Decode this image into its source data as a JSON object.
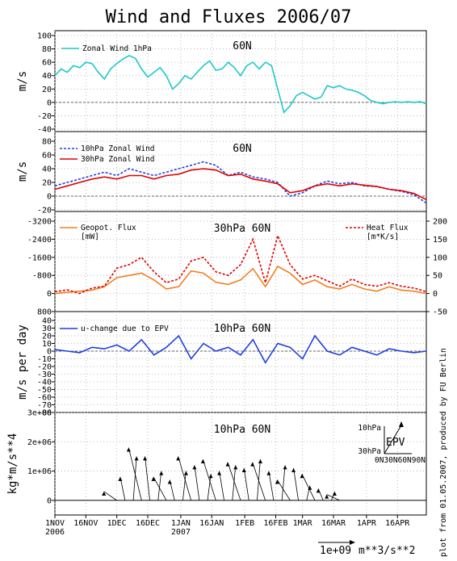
{
  "title": "Wind and Fluxes 2006/07",
  "side_note": "plot from 01.05.2007, produced by FU Berlin",
  "x_ticks": [
    "1NOV",
    "16NOV",
    "1DEC",
    "16DEC",
    "1JAN",
    "16JAN",
    "1FEB",
    "16FEB",
    "1MAR",
    "16MAR",
    "1APR",
    "16APR"
  ],
  "x_year_labels": [
    {
      "under": "1NOV",
      "text": "2006"
    },
    {
      "under": "1JAN",
      "text": "2007"
    }
  ],
  "colors": {
    "cyan": "#1ec8c8",
    "blue": "#2040e0",
    "red": "#e00000",
    "orange": "#f08020",
    "black": "#000000",
    "grid": "#aaaaaa"
  },
  "panels": {
    "p1": {
      "title": "60N",
      "ylabel": "m/s",
      "legend": "Zonal Wind 1hPa",
      "yticks": [
        "100",
        "80",
        "60",
        "40",
        "20",
        "0",
        "-20",
        "-40"
      ]
    },
    "p2": {
      "title": "60N",
      "ylabel": "m/s",
      "legend1": "10hPa Zonal Wind",
      "legend2": "30hPa Zonal Wind",
      "yticks": [
        "80",
        "60",
        "40",
        "20",
        "0",
        "-20"
      ]
    },
    "p3": {
      "title": "30hPa 60N",
      "legend_left": "Geopot. Flux",
      "legend_left_unit": "[mW]",
      "legend_right": "Heat Flux",
      "legend_right_unit": "[m*K/s]",
      "yticks_left": [
        "-3200",
        "-2400",
        "-1600",
        "-800",
        "0",
        "800"
      ],
      "yticks_right": [
        "200",
        "150",
        "100",
        "50",
        "0",
        "-50"
      ]
    },
    "p4": {
      "title": "10hPa 60N",
      "ylabel": "m/s per day",
      "legend": "u-change due to EPV",
      "yticks": [
        "40",
        "30",
        "20",
        "10",
        "0",
        "-10",
        "-20",
        "-30",
        "-40",
        "-50",
        "-60",
        "-70",
        "-80"
      ]
    },
    "p5": {
      "title": "10hPa 60N",
      "ylabel": "kg*m/s**4",
      "yticks": [
        "3e+06",
        "2e+06",
        "1e+06",
        "0"
      ],
      "inset": {
        "label": "EPV",
        "y_top": "10hPa",
        "y_bottom": "30hPa",
        "x_label": "0N30N60N90N"
      },
      "scale_label": "1e+09",
      "scale_unit": "m**3/s**2"
    }
  },
  "chart_data": [
    {
      "type": "line",
      "title": "60N",
      "ylabel": "m/s",
      "ylim": [
        -40,
        100
      ],
      "x_unit": "days since 1NOV2006",
      "series": [
        {
          "name": "Zonal Wind 1hPa",
          "color": "#1ec8c8",
          "x": [
            0,
            3,
            6,
            9,
            12,
            15,
            18,
            21,
            24,
            27,
            30,
            33,
            36,
            39,
            42,
            45,
            48,
            51,
            54,
            57,
            60,
            63,
            66,
            69,
            72,
            75,
            78,
            81,
            84,
            87,
            90,
            93,
            96,
            99,
            102,
            105,
            108,
            111,
            114,
            117,
            120,
            123,
            126,
            129,
            132,
            135,
            138,
            141,
            144,
            147,
            150,
            153,
            156,
            159,
            162,
            165,
            168,
            171,
            174,
            177,
            180
          ],
          "values": [
            40,
            50,
            45,
            55,
            52,
            60,
            58,
            45,
            35,
            50,
            58,
            65,
            70,
            66,
            50,
            38,
            45,
            52,
            40,
            20,
            28,
            40,
            35,
            45,
            55,
            62,
            48,
            50,
            60,
            52,
            40,
            55,
            60,
            50,
            60,
            55,
            20,
            -15,
            -5,
            10,
            15,
            10,
            5,
            8,
            25,
            22,
            25,
            20,
            18,
            15,
            10,
            3,
            0,
            -2,
            0,
            1,
            0,
            1,
            0,
            1,
            -2
          ]
        }
      ]
    },
    {
      "type": "line",
      "title": "60N",
      "ylabel": "m/s",
      "ylim": [
        -20,
        80
      ],
      "series": [
        {
          "name": "10hPa Zonal Wind",
          "color": "#2040e0",
          "x": [
            0,
            6,
            12,
            18,
            24,
            30,
            36,
            42,
            48,
            54,
            60,
            66,
            72,
            78,
            84,
            90,
            96,
            102,
            108,
            114,
            120,
            126,
            132,
            138,
            144,
            150,
            156,
            162,
            168,
            174,
            180
          ],
          "values": [
            15,
            20,
            25,
            30,
            35,
            30,
            40,
            35,
            30,
            35,
            40,
            45,
            50,
            45,
            30,
            35,
            28,
            25,
            20,
            0,
            5,
            15,
            22,
            18,
            20,
            15,
            14,
            10,
            7,
            2,
            -10
          ]
        },
        {
          "name": "30hPa Zonal Wind",
          "color": "#e00000",
          "x": [
            0,
            6,
            12,
            18,
            24,
            30,
            36,
            42,
            48,
            54,
            60,
            66,
            72,
            78,
            84,
            90,
            96,
            102,
            108,
            114,
            120,
            126,
            132,
            138,
            144,
            150,
            156,
            162,
            168,
            174,
            180
          ],
          "values": [
            10,
            15,
            20,
            25,
            28,
            25,
            30,
            30,
            25,
            30,
            32,
            38,
            40,
            38,
            30,
            32,
            25,
            22,
            18,
            5,
            8,
            15,
            18,
            15,
            18,
            16,
            14,
            10,
            8,
            4,
            -5
          ]
        }
      ]
    },
    {
      "type": "line",
      "title": "30hPa 60N",
      "ylim_left": [
        800,
        -3200
      ],
      "ylim_right": [
        -50,
        200
      ],
      "series": [
        {
          "name": "Geopot. Flux",
          "unit": "[mW]",
          "axis": "left",
          "color": "#f08020",
          "x": [
            0,
            6,
            12,
            18,
            24,
            30,
            36,
            42,
            48,
            54,
            60,
            66,
            72,
            78,
            84,
            90,
            96,
            102,
            108,
            114,
            120,
            126,
            132,
            138,
            144,
            150,
            156,
            162,
            168,
            174,
            180
          ],
          "values": [
            0,
            -50,
            -100,
            -150,
            -300,
            -700,
            -800,
            -900,
            -600,
            -200,
            -300,
            -1000,
            -900,
            -500,
            -400,
            -600,
            -1100,
            -300,
            -1200,
            -900,
            -400,
            -600,
            -300,
            -200,
            -400,
            -200,
            -100,
            -300,
            -150,
            -100,
            0
          ]
        },
        {
          "name": "Heat Flux",
          "unit": "[m*K/s]",
          "axis": "right",
          "color": "#e00000",
          "x": [
            0,
            6,
            12,
            18,
            24,
            30,
            36,
            42,
            48,
            54,
            60,
            66,
            72,
            78,
            84,
            90,
            96,
            102,
            108,
            114,
            120,
            126,
            132,
            138,
            144,
            150,
            156,
            162,
            168,
            174,
            180
          ],
          "values": [
            5,
            10,
            0,
            15,
            20,
            70,
            80,
            100,
            60,
            30,
            40,
            90,
            100,
            60,
            50,
            80,
            150,
            30,
            160,
            80,
            40,
            50,
            35,
            20,
            40,
            25,
            20,
            30,
            20,
            15,
            5
          ]
        }
      ]
    },
    {
      "type": "line",
      "title": "10hPa 60N",
      "ylabel": "m/s per day",
      "ylim": [
        -80,
        40
      ],
      "series": [
        {
          "name": "u-change due to EPV",
          "color": "#2040e0",
          "x": [
            0,
            6,
            12,
            18,
            24,
            30,
            36,
            42,
            48,
            54,
            60,
            66,
            72,
            78,
            84,
            90,
            96,
            102,
            108,
            114,
            120,
            126,
            132,
            138,
            144,
            150,
            156,
            162,
            168,
            174,
            180
          ],
          "values": [
            2,
            0,
            -2,
            5,
            3,
            8,
            0,
            15,
            -5,
            5,
            20,
            -10,
            10,
            0,
            5,
            -5,
            15,
            -15,
            10,
            5,
            -10,
            20,
            0,
            -5,
            5,
            0,
            -5,
            3,
            0,
            -2,
            0
          ]
        }
      ]
    },
    {
      "type": "scatter",
      "title": "10hPa 60N",
      "ylabel": "kg*m/s**4",
      "ylim": [
        -500000,
        3000000
      ],
      "series": [
        {
          "name": "EPV",
          "color": "#000000",
          "x": [
            30,
            34,
            38,
            42,
            46,
            50,
            54,
            58,
            62,
            66,
            70,
            74,
            78,
            82,
            86,
            90,
            94,
            98,
            102,
            106,
            110,
            114,
            118,
            122,
            126,
            130,
            134,
            138
          ],
          "values": [
            300000,
            800000,
            1500000,
            1800000,
            1500000,
            1000000,
            800000,
            700000,
            1000000,
            1500000,
            1200000,
            900000,
            1400000,
            1000000,
            1200000,
            1300000,
            1100000,
            1400000,
            1300000,
            1000000,
            1200000,
            700000,
            1100000,
            500000,
            900000,
            400000,
            300000,
            200000
          ]
        }
      ]
    }
  ]
}
